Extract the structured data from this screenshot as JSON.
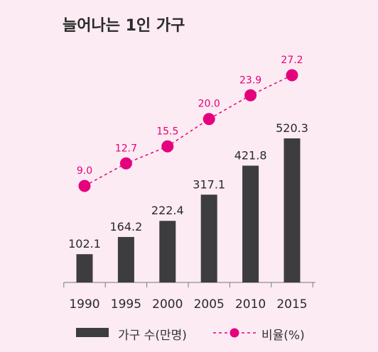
{
  "title": "늘어나는 1인 가구",
  "colors": {
    "background": "#fcebf2",
    "bar": "#3d3c3e",
    "line": "#e5007e",
    "text": "#2a2a2a"
  },
  "chart_data": {
    "type": "bar",
    "categories": [
      "1990",
      "1995",
      "2000",
      "2005",
      "2010",
      "2015"
    ],
    "series": [
      {
        "name": "가구 수(만명)",
        "type": "bar",
        "values": [
          102.1,
          164.2,
          222.4,
          317.1,
          421.8,
          520.3
        ]
      },
      {
        "name": "비율(%)",
        "type": "line",
        "style": "dashed-with-circle-markers",
        "values": [
          9.0,
          12.7,
          15.5,
          20.0,
          23.9,
          27.2
        ]
      }
    ],
    "bar_labels": [
      "102.1",
      "164.2",
      "222.4",
      "317.1",
      "421.8",
      "520.3"
    ],
    "line_labels": [
      "9.0",
      "12.7",
      "15.5",
      "20.0",
      "23.9",
      "27.2"
    ],
    "legend": {
      "position": "bottom",
      "bar_label": "가구 수(만명)",
      "line_label": "비율(%)"
    },
    "grid": false
  }
}
